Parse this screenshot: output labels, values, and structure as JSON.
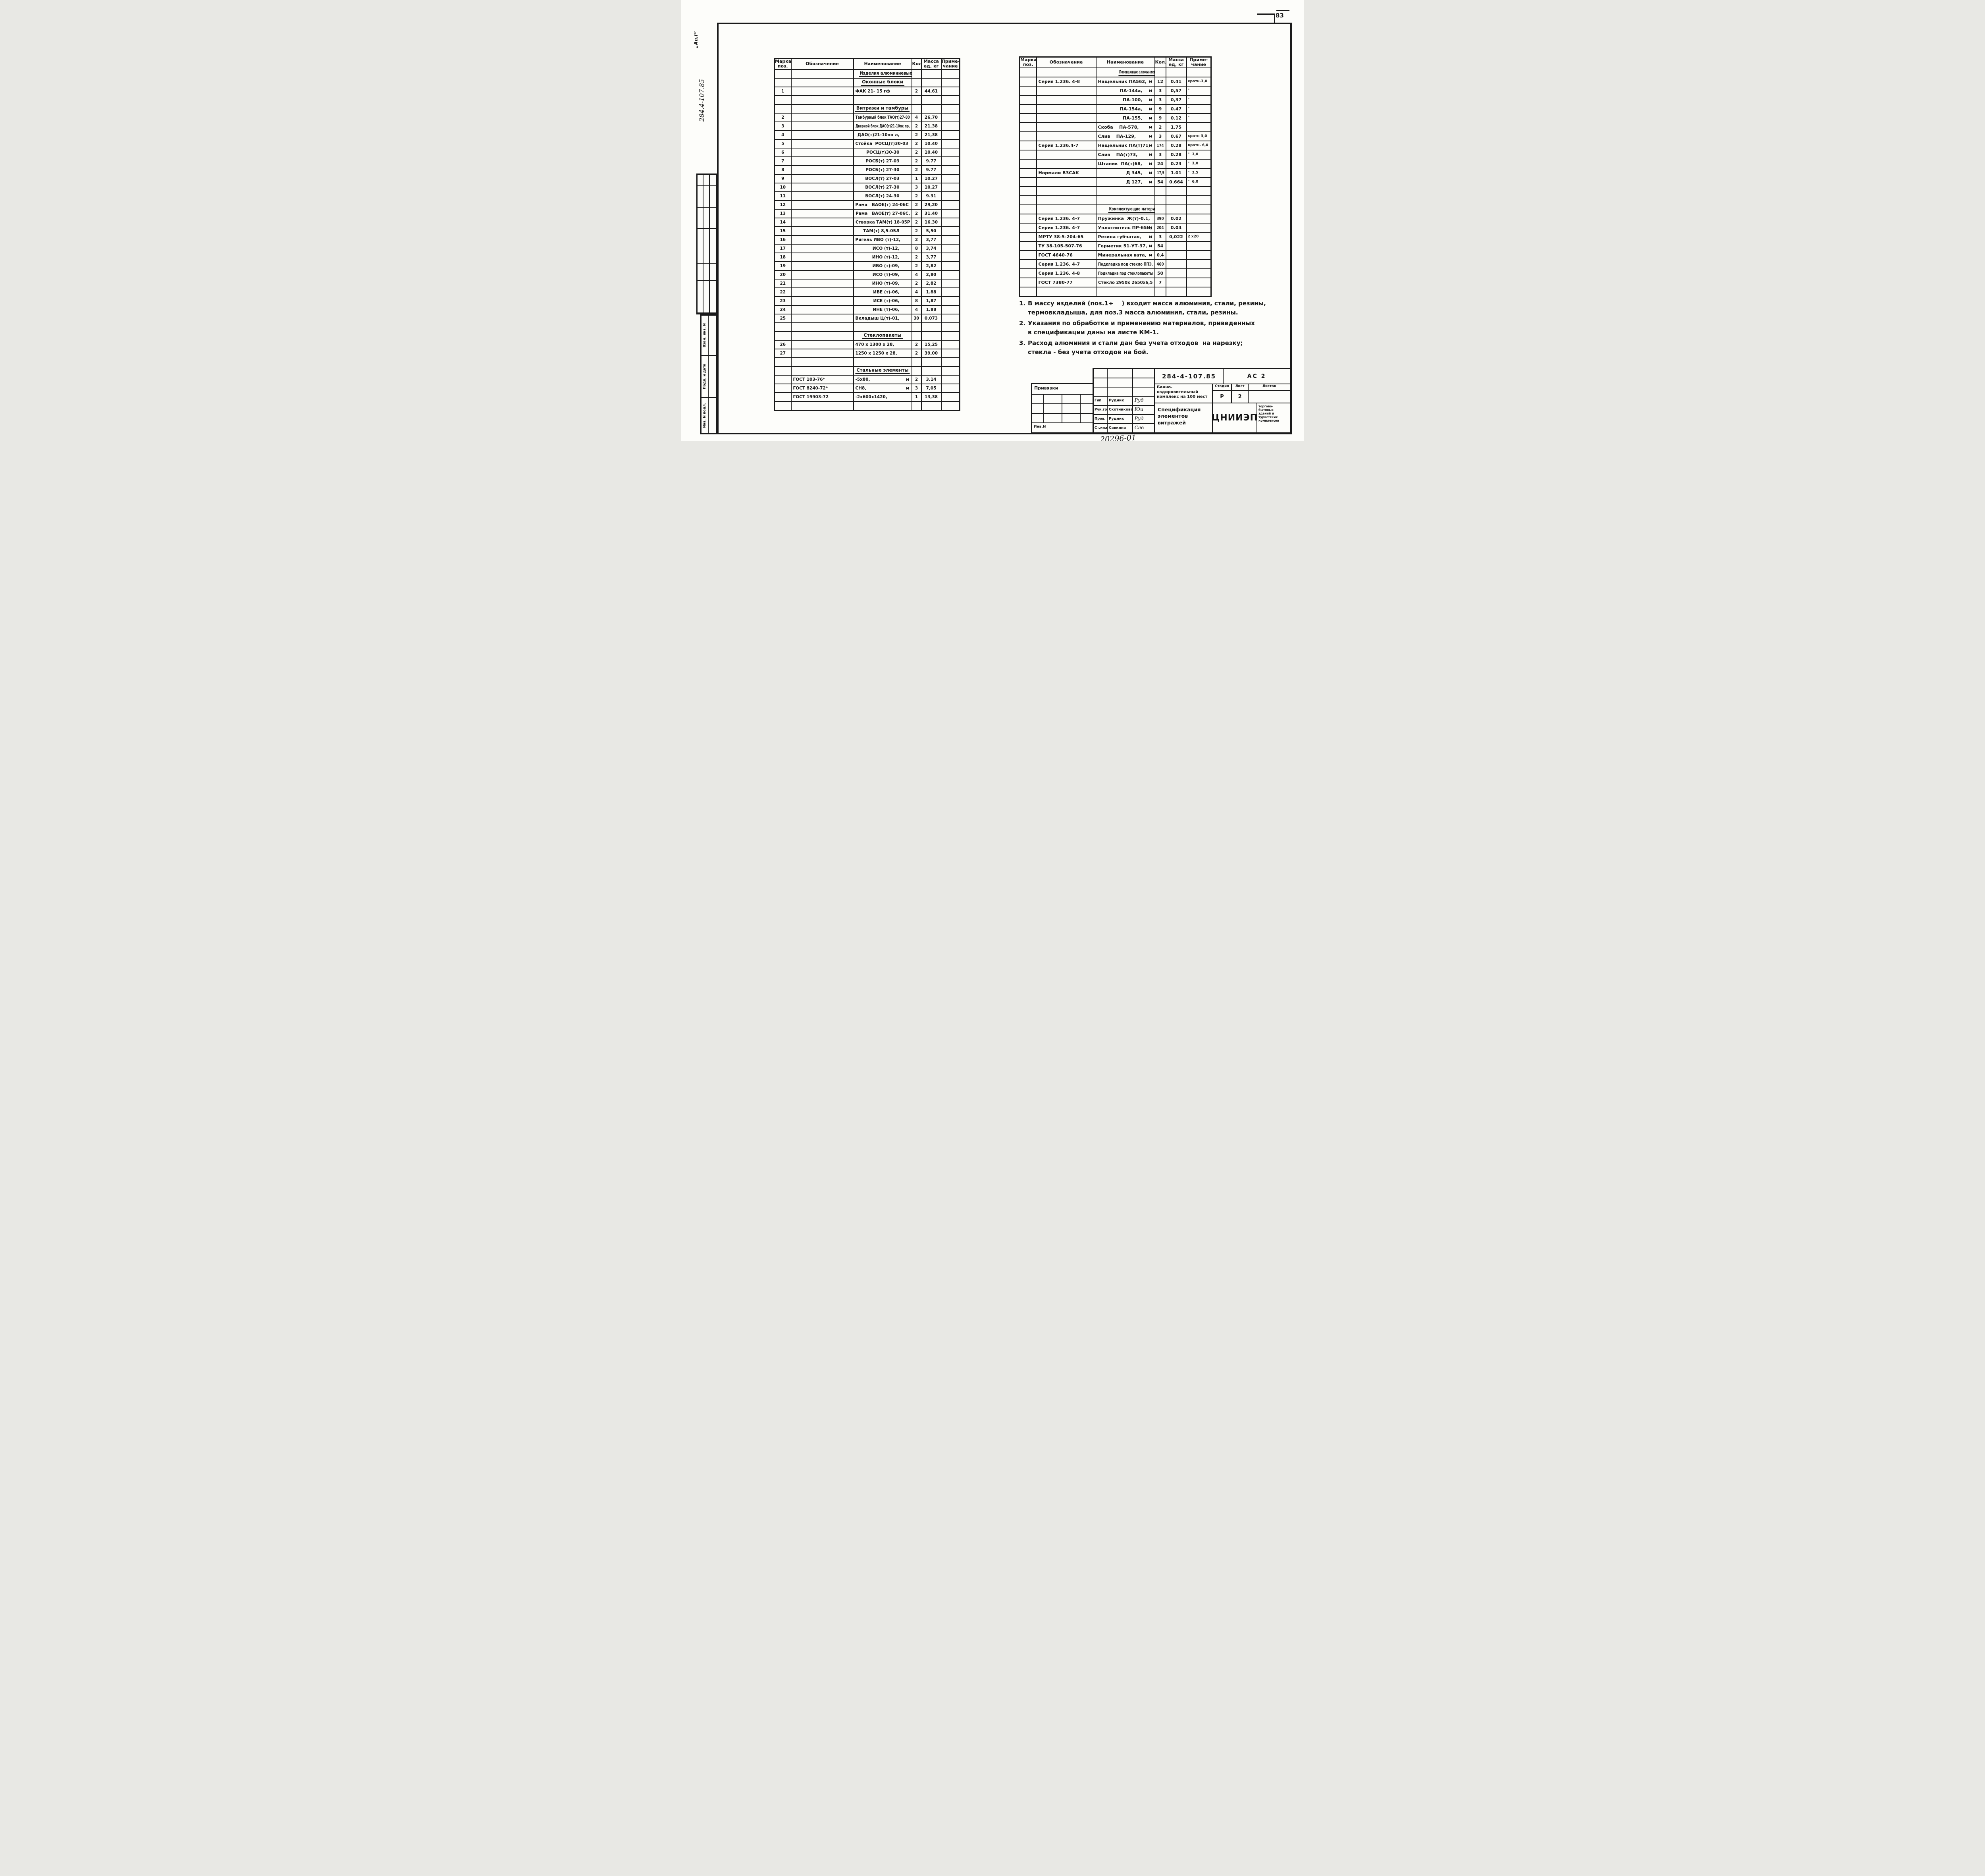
{
  "page": {
    "number": "83"
  },
  "margin": {
    "top_code": "„Ап.I“",
    "doc_number_vertical": "284.4-107.85",
    "stamp_labels": [
      "Взам. инв. N",
      "Подп. и дата",
      "Инв. N подл."
    ]
  },
  "columns": {
    "pos": "Марка\nпоз.",
    "oboz": "Обозначение",
    "naim": "Наименование",
    "kol": "Кол.",
    "massa": "Масса\nед, кг",
    "prim": "Приме-\nчание"
  },
  "left_table": {
    "rows": [
      {
        "type": "section",
        "text": "Изделия алюминиевые"
      },
      {
        "type": "section",
        "text": "Оконные блоки"
      },
      {
        "type": "item",
        "pos": "1",
        "oboz": "",
        "naim": "ФАК 21- 15 гф",
        "kol": "2",
        "massa": "44,61",
        "prim": ""
      },
      {
        "type": "empty"
      },
      {
        "type": "section",
        "text": "Витражи и тамбуры"
      },
      {
        "type": "item",
        "pos": "2",
        "oboz": "",
        "naim": "Тамбурный блок ТАО(т)27-80",
        "kol": "4",
        "massa": "26,70",
        "prim": ""
      },
      {
        "type": "item",
        "pos": "3",
        "oboz": "",
        "naim": "Дверной блок ДАО(т)21-10пк пр,",
        "kol": "2",
        "massa": "21,38",
        "prim": ""
      },
      {
        "type": "item",
        "pos": "4",
        "oboz": "",
        "naim": "ДАО(т)21-10пн л,",
        "indent": true,
        "kol": "2",
        "massa": "21,38",
        "prim": ""
      },
      {
        "type": "item",
        "pos": "5",
        "oboz": "",
        "naim": "Стойка  РОСЦ(т)30-03",
        "kol": "2",
        "massa": "10.40",
        "prim": ""
      },
      {
        "type": "item",
        "pos": "6",
        "oboz": "",
        "naim": "РОСЦ(т)30-30",
        "indent": true,
        "kol": "2",
        "massa": "10.40",
        "prim": ""
      },
      {
        "type": "item",
        "pos": "7",
        "oboz": "",
        "naim": "РОСБ(т) 27-03",
        "indent": true,
        "kol": "2",
        "massa": "9.77",
        "prim": ""
      },
      {
        "type": "item",
        "pos": "8",
        "oboz": "",
        "naim": "РОСБ(т) 27-30",
        "indent": true,
        "kol": "2",
        "massa": "9.77",
        "prim": ""
      },
      {
        "type": "item",
        "pos": "9",
        "oboz": "",
        "naim": "ВОСЛ(т) 27-03",
        "indent": true,
        "kol": "1",
        "massa": "10.27",
        "prim": ""
      },
      {
        "type": "item",
        "pos": "10",
        "oboz": "",
        "naim": "ВОСЛ(т) 27-30",
        "indent": true,
        "kol": "3",
        "massa": "10,27",
        "prim": ""
      },
      {
        "type": "item",
        "pos": "11",
        "oboz": "",
        "naim": "ВОСЛ(т) 24-30",
        "indent": true,
        "kol": "2",
        "massa": "9.31",
        "prim": ""
      },
      {
        "type": "item",
        "pos": "12",
        "oboz": "",
        "naim": "Рама   ВАОЕ(т) 24-06С",
        "kol": "2",
        "massa": "29,20",
        "prim": ""
      },
      {
        "type": "item",
        "pos": "13",
        "oboz": "",
        "naim": "Рама   ВАОЕ(т) 27-06С,",
        "kol": "2",
        "massa": "31.40",
        "prim": ""
      },
      {
        "type": "item",
        "pos": "14",
        "oboz": "",
        "naim": "Створка ТАМ(т) 18-05Р",
        "kol": "2",
        "massa": "16.30",
        "prim": ""
      },
      {
        "type": "item",
        "pos": "15",
        "oboz": "",
        "naim": "ТАМ(т) 8,5-05Л",
        "indent": true,
        "kol": "2",
        "massa": "5,50",
        "prim": ""
      },
      {
        "type": "item",
        "pos": "16",
        "oboz": "",
        "naim": "Ригель ИВО (т)-12,",
        "kol": "2",
        "massa": "3,77",
        "prim": ""
      },
      {
        "type": "item",
        "pos": "17",
        "oboz": "",
        "naim": "ИСО (т)-12,",
        "indent": true,
        "kol": "8",
        "massa": "3,74",
        "prim": ""
      },
      {
        "type": "item",
        "pos": "18",
        "oboz": "",
        "naim": "ИНО (т)-12,",
        "indent": true,
        "kol": "2",
        "massa": "3,77",
        "prim": ""
      },
      {
        "type": "item",
        "pos": "19",
        "oboz": "",
        "naim": "ИВО (т)-09,",
        "indent": true,
        "kol": "2",
        "massa": "2,82",
        "prim": ""
      },
      {
        "type": "item",
        "pos": "20",
        "oboz": "",
        "naim": "ИСО (т)-09,",
        "indent": true,
        "kol": "4",
        "massa": "2,80",
        "prim": ""
      },
      {
        "type": "item",
        "pos": "21",
        "oboz": "",
        "naim": "ИНО (т)-09,",
        "indent": true,
        "kol": "2",
        "massa": "2,82",
        "prim": ""
      },
      {
        "type": "item",
        "pos": "22",
        "oboz": "",
        "naim": "ИВЕ (т)-06,",
        "indent": true,
        "kol": "4",
        "massa": "1.88",
        "prim": ""
      },
      {
        "type": "item",
        "pos": "23",
        "oboz": "",
        "naim": "ИСЕ (т)-06,",
        "indent": true,
        "kol": "8",
        "massa": "1,87",
        "prim": ""
      },
      {
        "type": "item",
        "pos": "24",
        "oboz": "",
        "naim": "ИНЕ (т)-06,",
        "indent": true,
        "kol": "4",
        "massa": "1.88",
        "prim": ""
      },
      {
        "type": "item",
        "pos": "25",
        "oboz": "",
        "naim": "Вкладыш Ц(т)-01,",
        "kol": "30",
        "massa": "0.073",
        "prim": ""
      },
      {
        "type": "empty"
      },
      {
        "type": "section",
        "text": "Стеклопакеты"
      },
      {
        "type": "item",
        "pos": "26",
        "oboz": "",
        "naim": "470 х 1300 х 28,",
        "kol": "2",
        "massa": "15,25",
        "prim": ""
      },
      {
        "type": "item",
        "pos": "27",
        "oboz": "",
        "naim": "1250 х 1250 х 28,",
        "kol": "2",
        "massa": "39,00",
        "prim": ""
      },
      {
        "type": "empty"
      },
      {
        "type": "section",
        "text": "Стальные элементы"
      },
      {
        "type": "item",
        "pos": "",
        "oboz": "ГОСТ 103-76*",
        "naim": "-5х80,",
        "unit": "м",
        "kol": "2",
        "massa": "3.14",
        "prim": ""
      },
      {
        "type": "item",
        "pos": "",
        "oboz": "ГОСТ 8240-72*",
        "naim": "СН8,",
        "unit": "м",
        "kol": "3",
        "massa": "7,05",
        "prim": ""
      },
      {
        "type": "item",
        "pos": "",
        "oboz": "ГОСТ 19903-72",
        "naim": "-2х600х1420,",
        "kol": "1",
        "massa": "13,38",
        "prim": ""
      },
      {
        "type": "empty"
      }
    ]
  },
  "right_table": {
    "rows": [
      {
        "type": "section",
        "text": "Погонажные алюминиевые изделия"
      },
      {
        "type": "item",
        "pos": "",
        "oboz": "Серия 1.236. 4-8",
        "naim": "Нащельник ПА562,",
        "unit": "м",
        "kol": "12",
        "massa": "0.41",
        "prim": "кратн.3,0"
      },
      {
        "type": "item",
        "pos": "",
        "oboz": "",
        "naim": "ПА-144а,",
        "unit": "м",
        "indent": true,
        "kol": "3",
        "massa": "0,57",
        "prim": "\""
      },
      {
        "type": "item",
        "pos": "",
        "oboz": "",
        "naim": "ПА-100,",
        "unit": "м",
        "indent": true,
        "kol": "3",
        "massa": "0,37",
        "prim": "\""
      },
      {
        "type": "item",
        "pos": "",
        "oboz": "",
        "naim": "ПА-154а,",
        "unit": "м",
        "indent": true,
        "kol": "9",
        "massa": "0.47",
        "prim": "\""
      },
      {
        "type": "item",
        "pos": "",
        "oboz": "",
        "naim": "ПА-155,",
        "unit": "м",
        "indent": true,
        "kol": "9",
        "massa": "0.12",
        "prim": "\""
      },
      {
        "type": "item",
        "pos": "",
        "oboz": "",
        "naim": "Скоба    ПА-578,",
        "unit": "м",
        "kol": "2",
        "massa": "1.75",
        "prim": ""
      },
      {
        "type": "item",
        "pos": "",
        "oboz": "",
        "naim": "Слив    ПА-129,",
        "unit": "м",
        "kol": "3",
        "massa": "0.67",
        "prim": "кратн 3,0"
      },
      {
        "type": "item",
        "pos": "",
        "oboz": "Серия 1.236.4-7",
        "naim": "Нащельник ПА(т)71,",
        "unit": "м",
        "kol": "174",
        "massa": "0.28",
        "prim": "кратн. 6,0"
      },
      {
        "type": "item",
        "pos": "",
        "oboz": "",
        "naim": "Слив    ПА(т)73,",
        "unit": "м",
        "kol": "3",
        "massa": "0.28",
        "prim": "\"  3,0"
      },
      {
        "type": "item",
        "pos": "",
        "oboz": "",
        "naim": "Штапик  ПА(т)68,",
        "unit": "м",
        "kol": "24",
        "massa": "0.23",
        "prim": "\"  3,0"
      },
      {
        "type": "item",
        "pos": "",
        "oboz": "Нормали ВЗСАК",
        "naim": "Д 345,",
        "unit": "м",
        "indent": true,
        "kol": "17,5",
        "massa": "1.01",
        "prim": "\"  3,5"
      },
      {
        "type": "item",
        "pos": "",
        "oboz": "",
        "naim": "Д 127,",
        "unit": "м",
        "indent": true,
        "kol": "54",
        "massa": "0.664",
        "prim": "\"  6,0"
      },
      {
        "type": "empty"
      },
      {
        "type": "empty"
      },
      {
        "type": "section",
        "text": "Комплектующие материалы"
      },
      {
        "type": "item",
        "pos": "",
        "oboz": "Серия 1.236. 4-7",
        "naim": "Пружинка  Ж(т)-0.1,",
        "kol": "390",
        "massa": "0.02",
        "prim": ""
      },
      {
        "type": "item",
        "pos": "",
        "oboz": "Серия 1.236. 4-7",
        "naim": "Уплотнитель ПР-65И,",
        "unit": "м",
        "kol": "204",
        "massa": "0.04",
        "prim": ""
      },
      {
        "type": "item",
        "pos": "",
        "oboz": "МРТУ 38-5-204-65",
        "naim": "Резина губчатая,",
        "unit": "м",
        "kol": "3",
        "massa": "0,022",
        "prim": "2 х20"
      },
      {
        "type": "item",
        "pos": "",
        "oboz": "ТУ 38-105-507-76",
        "naim": "Герметик 51-УТ-37,",
        "unit": "м",
        "kol": "54",
        "massa": "",
        "prim": ""
      },
      {
        "type": "item",
        "pos": "",
        "oboz": "ГОСТ 4640-76",
        "naim": "Минеральная вата,",
        "unit": "м",
        "kol": "0,4",
        "massa": "",
        "prim": ""
      },
      {
        "type": "item",
        "pos": "",
        "oboz": "Серия 1.236. 4-7",
        "naim": "Подкладка под стекло ППЭ,",
        "kol": "460",
        "massa": "",
        "prim": ""
      },
      {
        "type": "item",
        "pos": "",
        "oboz": "Серия 1.236. 4-8",
        "naim": "Подкладка под стеклопакеты",
        "kol": "50",
        "massa": "",
        "prim": ""
      },
      {
        "type": "item",
        "pos": "",
        "oboz": "ГОСТ 7380-77",
        "naim": "Стекло 2950х 2650х6,5",
        "kol": "7",
        "massa": "",
        "prim": ""
      },
      {
        "type": "empty"
      }
    ]
  },
  "notes": [
    {
      "num": "1.",
      "lines": [
        "В массу изделий (поз.1÷    ) входит масса алюминия, стали, резины,",
        "термовкладыша, для поз.3 масса алюминия, стали, резины."
      ]
    },
    {
      "num": "2.",
      "lines": [
        "Указания по обработке и применению материалов, приведенных",
        "в спецификации даны на листе КМ-1."
      ]
    },
    {
      "num": "3.",
      "lines": [
        "Расход алюминия и стали дан без учета отходов  на нарезку;",
        "стекла - без учета отходов на бой."
      ]
    }
  ],
  "titleblock": {
    "doc_number": "284-4-107.85",
    "doc_code": "АС 2",
    "project": "Банно-оздоровительный\nкомплекс на 100 мест",
    "sheet_title": "Спецификация\nэлементов витражей",
    "stage_label": "Стадия",
    "sheet_label": "Лист",
    "sheets_label": "Листов",
    "stage": "Р",
    "sheet": "2",
    "sheets": "",
    "org": "ЦНИИЭП",
    "org_sub": "торгово-\nбытовых\nзданий и\nтуристских\nкомплексов",
    "privyazki_label": "Привязки",
    "inv_label": "Инв.N",
    "handwritten_number": "20296-01",
    "roles": [
      {
        "role": "Гип",
        "name": "Рудник",
        "sign": "Руд"
      },
      {
        "role": "Рук.гр.",
        "name": "Скотникова",
        "sign": "Юи"
      },
      {
        "role": "Пров.",
        "name": "Рудник",
        "sign": "Руд"
      },
      {
        "role": "Ст.инж",
        "name": "Савкина",
        "sign": "Сав"
      }
    ]
  }
}
